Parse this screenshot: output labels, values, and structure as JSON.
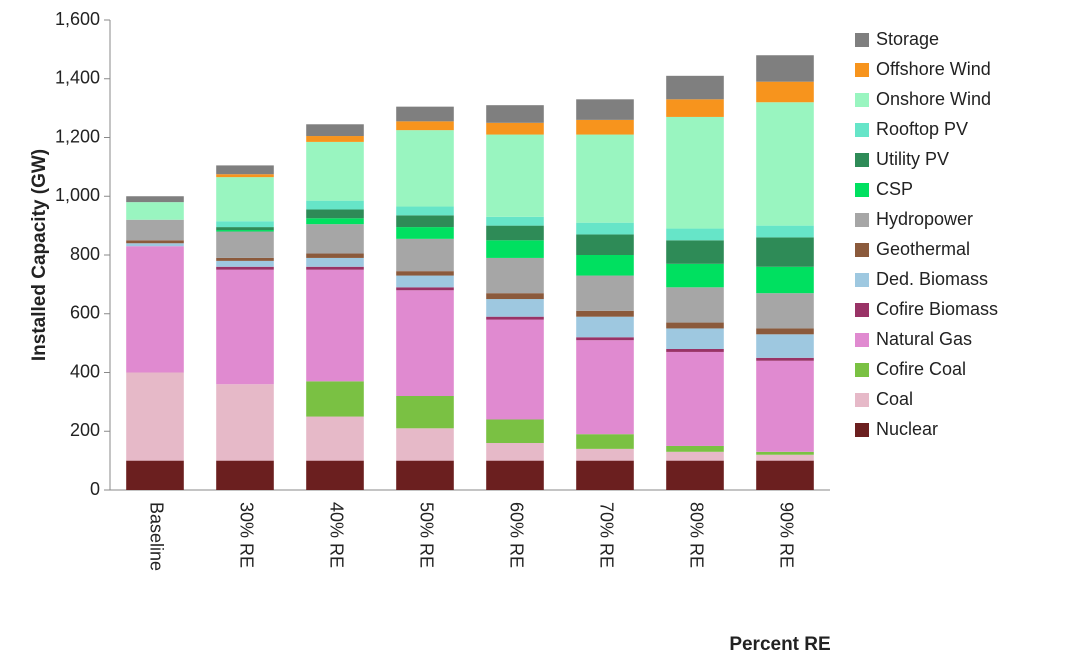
{
  "chart_data": {
    "type": "stacked_bar",
    "y_label": "Installed Capacity (GW)",
    "x_label": "Percent RE",
    "categories": [
      "Baseline",
      "30% RE",
      "40% RE",
      "50% RE",
      "60% RE",
      "70% RE",
      "80% RE",
      "90% RE"
    ],
    "ylim": [
      0,
      1600
    ],
    "yticks": [
      0,
      200,
      400,
      600,
      800,
      {
        "value": 1000,
        "label": "1,000"
      },
      {
        "value": 1200,
        "label": "1,200"
      },
      {
        "value": 1400,
        "label": "1,400"
      },
      {
        "value": 1600,
        "label": "1,600"
      }
    ],
    "grid": false,
    "series": [
      {
        "name": "Nuclear",
        "color": "#6b1f1f",
        "values": [
          100,
          100,
          100,
          100,
          100,
          100,
          100,
          100
        ]
      },
      {
        "name": "Coal",
        "color": "#e6b9c8",
        "values": [
          300,
          260,
          150,
          110,
          60,
          40,
          30,
          20
        ]
      },
      {
        "name": "Cofire Coal",
        "color": "#7ac143",
        "values": [
          0,
          0,
          120,
          110,
          80,
          50,
          20,
          10
        ]
      },
      {
        "name": "Natural Gas",
        "color": "#e08ad0",
        "values": [
          430,
          390,
          380,
          360,
          340,
          320,
          320,
          310
        ]
      },
      {
        "name": "Cofire Biomass",
        "color": "#993366",
        "values": [
          0,
          10,
          10,
          10,
          10,
          10,
          10,
          10
        ]
      },
      {
        "name": "Ded. Biomass",
        "color": "#9ec8e0",
        "values": [
          10,
          20,
          30,
          40,
          60,
          70,
          70,
          80
        ]
      },
      {
        "name": "Geothermal",
        "color": "#8b5a3c",
        "values": [
          10,
          10,
          15,
          15,
          20,
          20,
          20,
          20
        ]
      },
      {
        "name": "Hydropower",
        "color": "#a6a6a6",
        "values": [
          70,
          90,
          100,
          110,
          120,
          120,
          120,
          120
        ]
      },
      {
        "name": "CSP",
        "color": "#00e060",
        "values": [
          0,
          5,
          20,
          40,
          60,
          70,
          80,
          90
        ]
      },
      {
        "name": "Utility PV",
        "color": "#2e8b57",
        "values": [
          0,
          10,
          30,
          40,
          50,
          70,
          80,
          100
        ]
      },
      {
        "name": "Rooftop PV",
        "color": "#66e5c8",
        "values": [
          0,
          20,
          30,
          30,
          30,
          40,
          40,
          40
        ]
      },
      {
        "name": "Onshore Wind",
        "color": "#99f5c0",
        "values": [
          60,
          150,
          200,
          260,
          280,
          300,
          380,
          420
        ]
      },
      {
        "name": "Offshore Wind",
        "color": "#f7941d",
        "values": [
          0,
          10,
          20,
          30,
          40,
          50,
          60,
          70
        ]
      },
      {
        "name": "Storage",
        "color": "#7f7f7f",
        "values": [
          20,
          30,
          40,
          50,
          60,
          70,
          80,
          90
        ]
      }
    ]
  }
}
